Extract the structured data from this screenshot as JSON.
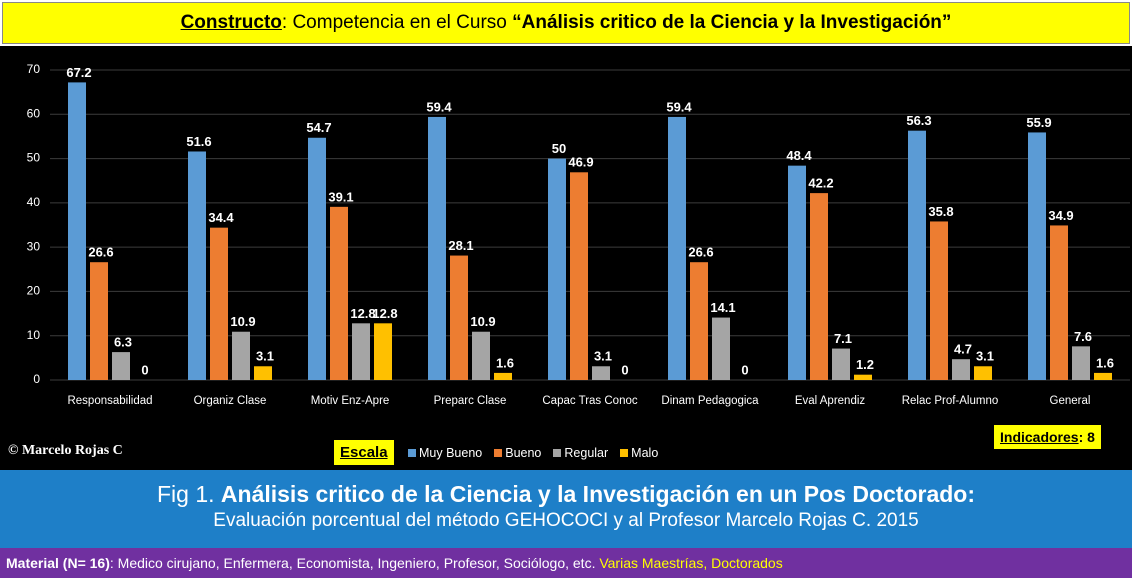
{
  "header": {
    "title_label": "Constructo",
    "title_rest": ": Competencia en el Curso ",
    "title_quote": "“Análisis critico de la Ciencia y la Investigación”"
  },
  "chart_data": {
    "type": "bar",
    "categories": [
      "Responsabilidad",
      "Organiz Clase",
      "Motiv Enz-Apre",
      "Preparc Clase",
      "Capac Tras Conoc",
      "Dinam Pedagogica",
      "Eval Aprendiz",
      "Relac Prof-Alumno",
      "General"
    ],
    "series": [
      {
        "name": "Muy Bueno",
        "color": "#5b9bd5",
        "values": [
          67.2,
          51.6,
          54.7,
          59.4,
          50,
          59.4,
          48.4,
          56.3,
          55.9
        ]
      },
      {
        "name": "Bueno",
        "color": "#ed7d31",
        "values": [
          26.6,
          34.4,
          39.1,
          28.1,
          46.9,
          26.6,
          42.2,
          35.8,
          34.9
        ]
      },
      {
        "name": "Regular",
        "color": "#a5a5a5",
        "values": [
          6.3,
          10.9,
          12.8,
          10.9,
          3.1,
          14.1,
          7.1,
          4.7,
          7.6
        ]
      },
      {
        "name": "Malo",
        "color": "#ffc000",
        "values": [
          0,
          3.1,
          12.8,
          1.6,
          0,
          0,
          1.2,
          3.1,
          1.6
        ]
      }
    ],
    "ylim": [
      0,
      70
    ],
    "yticks": [
      0,
      10,
      20,
      30,
      40,
      50,
      60,
      70
    ],
    "grid": true,
    "legend_title": "Escala"
  },
  "footer": {
    "copyright": "© Marcelo Rojas C",
    "indicators_label": "Indicadores",
    "indicators_value": ": 8",
    "fig_prefix": "Fig 1. ",
    "fig_title": "Análisis critico de la Ciencia y la Investigación en un Pos Doctorado:",
    "fig_subtitle": "Evaluación porcentual del método GEHOCOCI y al Profesor Marcelo Rojas C. 2015",
    "material_label": "Material (N= 16)",
    "material_text": ": Medico cirujano, Enfermera, Economista, Ingeniero, Profesor, Sociólogo, etc. ",
    "material_highlight": "Varias Maestrías, Doctorados"
  }
}
